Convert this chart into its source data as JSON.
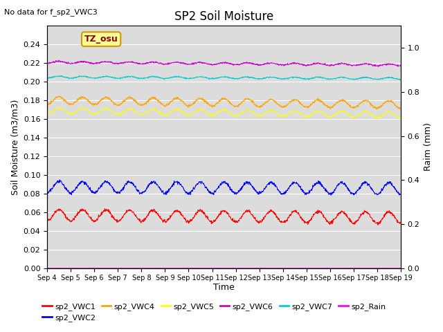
{
  "title": "SP2 Soil Moisture",
  "subtitle": "No data for f_sp2_VWC3",
  "xlabel": "Time",
  "ylabel_left": "Soil Moisture (m3/m3)",
  "ylabel_right": "Raim (mm)",
  "annotation": "TZ_osu",
  "ylim_left": [
    0.0,
    0.26
  ],
  "ylim_right": [
    0.0,
    1.1
  ],
  "yticks_left": [
    0.0,
    0.02,
    0.04,
    0.06,
    0.08,
    0.1,
    0.12,
    0.14,
    0.16,
    0.18,
    0.2,
    0.22,
    0.24
  ],
  "yticks_right": [
    0.0,
    0.2,
    0.4,
    0.6,
    0.8,
    1.0
  ],
  "n_points": 1440,
  "series": {
    "sp2_VWC1": {
      "color": "#FF0000",
      "base": 0.057,
      "amplitude": 0.006,
      "period_days": 1.0,
      "trend": -0.0002,
      "noise": 0.0008
    },
    "sp2_VWC2": {
      "color": "#0000FF",
      "base": 0.087,
      "amplitude": 0.006,
      "period_days": 1.0,
      "trend": -0.0001,
      "noise": 0.0008
    },
    "sp2_VWC4": {
      "color": "#FFA500",
      "base": 0.18,
      "amplitude": 0.004,
      "period_days": 1.0,
      "trend": -0.0003,
      "noise": 0.0006
    },
    "sp2_VWC5": {
      "color": "#FFFF00",
      "base": 0.169,
      "amplitude": 0.003,
      "period_days": 1.0,
      "trend": -0.0003,
      "noise": 0.0004
    },
    "sp2_VWC6": {
      "color": "#CC00CC",
      "base": 0.221,
      "amplitude": 0.001,
      "period_days": 1.0,
      "trend": -0.0002,
      "noise": 0.0004
    },
    "sp2_VWC7": {
      "color": "#00CCCC",
      "base": 0.205,
      "amplitude": 0.001,
      "period_days": 1.0,
      "trend": -0.0001,
      "noise": 0.0003
    },
    "sp2_Rain": {
      "color": "#FF00FF",
      "base": 0.0,
      "amplitude": 0.0,
      "period_days": 1.0,
      "trend": 0.0,
      "noise": 0.0
    }
  },
  "xtick_labels": [
    "Sep 4",
    "Sep 5",
    "Sep 6",
    "Sep 7",
    "Sep 8",
    "Sep 9",
    "Sep 10",
    "Sep 11",
    "Sep 12",
    "Sep 13",
    "Sep 14",
    "Sep 15",
    "Sep 16",
    "Sep 17",
    "Sep 18",
    "Sep 19"
  ],
  "bg_color": "#DCDCDC",
  "grid_color": "#FFFFFF",
  "annotation_bg": "#FFFF99",
  "annotation_border": "#CC9900",
  "annotation_text_color": "#8B0000"
}
